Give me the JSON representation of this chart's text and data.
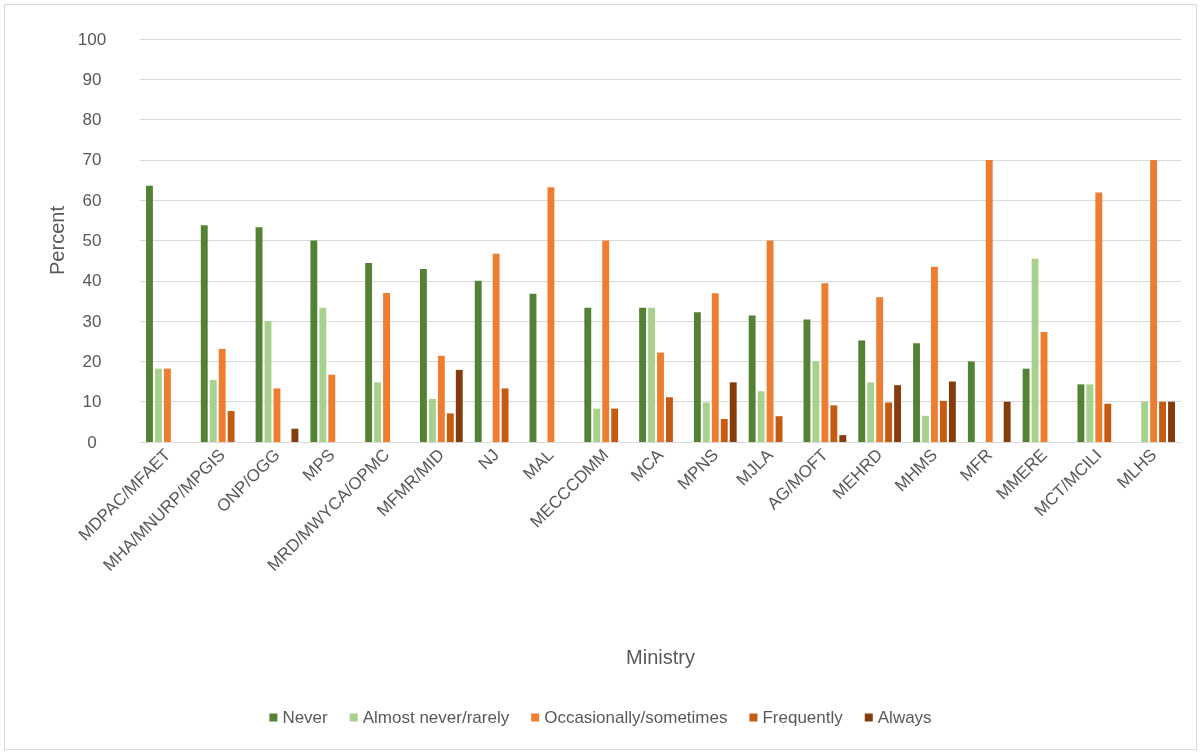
{
  "chart_data": {
    "type": "bar",
    "xlabel": "Ministry",
    "ylabel": "Percent",
    "categories": [
      "MDPAC/MFAET",
      "MHA/MNURP/MPGIS",
      "ONP/OGG",
      "MPS",
      "MRD/MWYCA/OPMC",
      "MFMR/MID",
      "NJ",
      "MAL",
      "MECCCDMM",
      "MCA",
      "MPNS",
      "MJLA",
      "AG/MOFT",
      "MEHRD",
      "MHMS",
      "MFR",
      "MMERE",
      "MCT/MCILI",
      "MLHS"
    ],
    "series": [
      {
        "name": "Never",
        "color": "#548235",
        "values": [
          63.6,
          53.8,
          53.3,
          50,
          44.4,
          42.9,
          40,
          36.8,
          33.3,
          33.3,
          32.2,
          31.4,
          30.4,
          25.2,
          24.5,
          20,
          18.2,
          14.3,
          null
        ]
      },
      {
        "name": "Almost never/rarely",
        "color": "#a9d18e",
        "values": [
          18.2,
          15.4,
          30,
          33.3,
          14.8,
          10.7,
          null,
          null,
          8.3,
          33.3,
          9.8,
          12.6,
          20,
          14.8,
          6.5,
          null,
          45.5,
          14.3,
          10
        ]
      },
      {
        "name": "Occasionally/sometimes",
        "color": "#ed7d31",
        "values": [
          18.2,
          23.1,
          13.3,
          16.7,
          37,
          21.4,
          46.7,
          63.2,
          50,
          22.2,
          36.9,
          50,
          39.4,
          35.9,
          43.5,
          70,
          27.3,
          61.9,
          70
        ]
      },
      {
        "name": "Frequently",
        "color": "#c55a11",
        "values": [
          null,
          7.7,
          null,
          null,
          null,
          7.1,
          13.3,
          null,
          8.3,
          11.1,
          5.7,
          6.4,
          9.1,
          9.8,
          10.2,
          null,
          null,
          9.5,
          10
        ]
      },
      {
        "name": "Always",
        "color": "#843c0c",
        "values": [
          null,
          null,
          3.3,
          null,
          null,
          17.9,
          null,
          null,
          null,
          null,
          14.8,
          null,
          1.7,
          14.1,
          15,
          10,
          null,
          null,
          10
        ]
      }
    ],
    "ylim": [
      0,
      100
    ],
    "yticks": [
      0,
      10,
      20,
      30,
      40,
      50,
      60,
      70,
      80,
      90,
      100
    ],
    "grid": "y",
    "legend": "bottom"
  }
}
